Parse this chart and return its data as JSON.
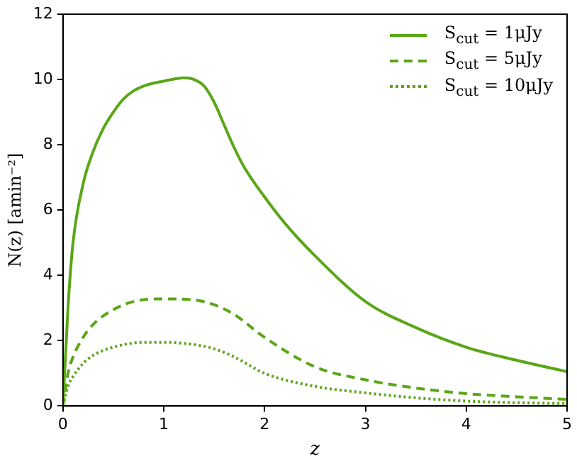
{
  "chart_data": {
    "type": "line",
    "xlabel": "z",
    "ylabel": "N(z) [amin⁻²]",
    "xlim": [
      0,
      5
    ],
    "xticks": [
      0,
      1,
      2,
      3,
      4,
      5
    ],
    "ylim": [
      0,
      12
    ],
    "yticks": [
      0,
      2,
      4,
      6,
      8,
      10,
      12
    ],
    "grid": false,
    "legend": "top right",
    "marker": "none",
    "series": [
      {
        "name": "S$_{cut}$ = 1μJy",
        "color": "#5aa617",
        "line_style": "solid",
        "x": [
          0,
          0.05,
          0.1,
          0.2,
          0.3,
          0.4,
          0.5,
          0.6,
          0.7,
          0.8,
          1.0,
          1.2,
          1.3,
          1.4,
          1.5,
          1.6,
          1.7,
          1.8,
          2.0,
          2.2,
          2.5,
          3.0,
          3.5,
          4.0,
          4.5,
          5.0
        ],
        "values": [
          0,
          3,
          5,
          6.8,
          7.8,
          8.5,
          9.0,
          9.4,
          9.65,
          9.8,
          9.95,
          10.05,
          10.0,
          9.8,
          9.3,
          8.6,
          7.9,
          7.3,
          6.4,
          5.6,
          4.6,
          3.2,
          2.4,
          1.8,
          1.4,
          1.05
        ]
      },
      {
        "name": "S$_{cut}$ = 5μJy",
        "color": "#5aa617",
        "line_style": "dashed",
        "x": [
          0,
          0.05,
          0.1,
          0.2,
          0.3,
          0.5,
          0.7,
          1.0,
          1.3,
          1.5,
          1.7,
          2.0,
          2.5,
          3.0,
          3.5,
          4.0,
          4.5,
          5.0
        ],
        "values": [
          0,
          1.0,
          1.5,
          2.1,
          2.5,
          2.95,
          3.2,
          3.28,
          3.25,
          3.1,
          2.8,
          2.1,
          1.2,
          0.8,
          0.55,
          0.38,
          0.28,
          0.2
        ]
      },
      {
        "name": "S$_{cut}$ = 10μJy",
        "color": "#5aa617",
        "line_style": "dotted",
        "x": [
          0,
          0.05,
          0.1,
          0.2,
          0.3,
          0.5,
          0.8,
          1.0,
          1.3,
          1.5,
          1.7,
          2.0,
          2.5,
          3.0,
          3.5,
          4.0,
          4.5,
          5.0
        ],
        "values": [
          0,
          0.6,
          0.9,
          1.3,
          1.55,
          1.8,
          1.95,
          1.95,
          1.88,
          1.75,
          1.5,
          1.0,
          0.6,
          0.4,
          0.25,
          0.15,
          0.1,
          0.07
        ]
      }
    ]
  }
}
